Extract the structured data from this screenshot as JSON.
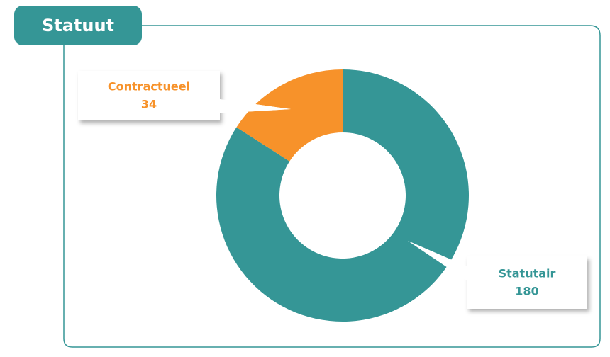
{
  "chart_data": {
    "type": "pie",
    "title": "Statuut",
    "categories": [
      "Statutair",
      "Contractueel"
    ],
    "values": [
      180,
      34
    ],
    "colors": [
      "#359696",
      "#f7922a"
    ]
  }
}
